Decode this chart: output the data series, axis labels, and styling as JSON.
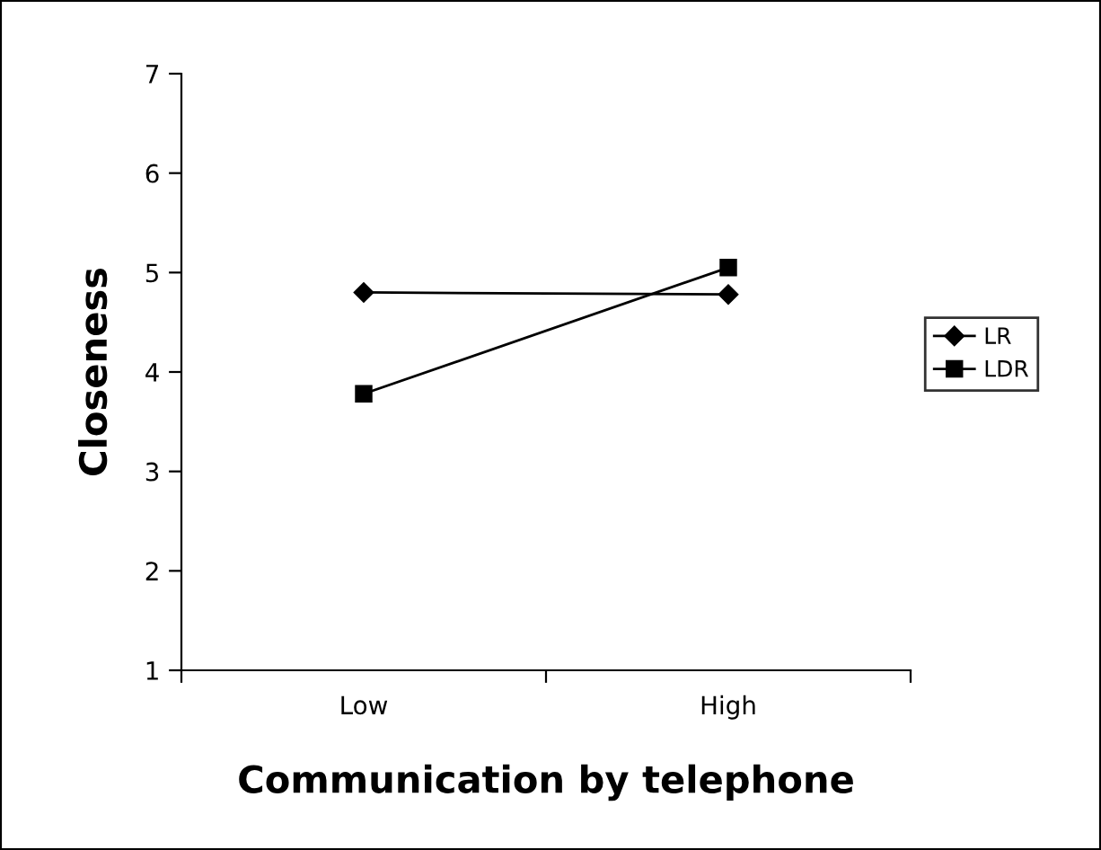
{
  "chart_data": {
    "type": "line",
    "xlabel": "Communication by telephone",
    "ylabel": "Closeness",
    "categories": [
      "Low",
      "High"
    ],
    "series": [
      {
        "name": "LR",
        "color": "#000000",
        "marker": "diamond",
        "values": [
          4.8,
          4.78
        ]
      },
      {
        "name": "LDR",
        "color": "#000000",
        "marker": "square",
        "values": [
          3.78,
          5.05
        ]
      }
    ],
    "ylim": [
      1,
      7
    ],
    "yticks": [
      1,
      2,
      3,
      4,
      5,
      6,
      7
    ],
    "grid": false,
    "legend": "right",
    "line_style": "solid"
  }
}
